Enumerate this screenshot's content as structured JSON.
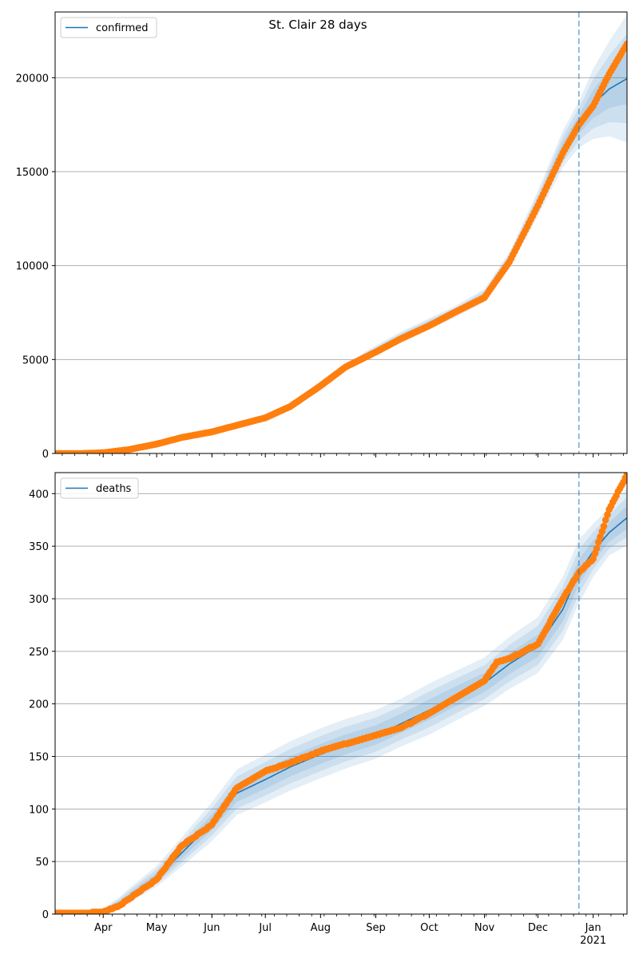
{
  "figure": {
    "title": "St. Clair 28 days"
  },
  "colors": {
    "model": "#1f77b4",
    "observed": "#ff7f0e",
    "band": "#1f77b4",
    "grid": "#b0b0b0",
    "forecast_marker": "#1f77b4"
  },
  "chart_data": [
    {
      "type": "line",
      "name": "confirmed-panel",
      "legend": "confirmed",
      "legend_position": "top-left",
      "grid": "horizontal",
      "x_range": [
        "2020-03-05",
        "2021-01-20"
      ],
      "ylim": [
        0,
        23500
      ],
      "yticks": [
        0,
        5000,
        10000,
        15000,
        20000
      ],
      "forecast_start": "2020-12-24",
      "model": {
        "x": [
          "2020-03-05",
          "2020-03-20",
          "2020-04-01",
          "2020-04-15",
          "2020-05-01",
          "2020-05-15",
          "2020-06-01",
          "2020-06-15",
          "2020-07-01",
          "2020-07-15",
          "2020-08-01",
          "2020-08-15",
          "2020-09-01",
          "2020-09-15",
          "2020-10-01",
          "2020-10-15",
          "2020-11-01",
          "2020-11-15",
          "2020-12-01",
          "2020-12-15",
          "2020-12-24",
          "2021-01-01",
          "2021-01-10",
          "2021-01-20"
        ],
        "y": [
          0,
          0,
          30,
          150,
          450,
          800,
          1200,
          1550,
          1950,
          2500,
          3700,
          4600,
          5500,
          6200,
          6900,
          7500,
          8400,
          10300,
          13300,
          16200,
          17500,
          18600,
          19400,
          19950
        ],
        "band_frac": [
          0,
          0,
          0.1,
          0.1,
          0.08,
          0.07,
          0.06,
          0.05,
          0.05,
          0.05,
          0.04,
          0.04,
          0.04,
          0.04,
          0.04,
          0.04,
          0.04,
          0.04,
          0.05,
          0.06,
          0.07,
          0.1,
          0.13,
          0.17
        ]
      },
      "observed": {
        "x": [
          "2020-03-05",
          "2020-03-20",
          "2020-04-01",
          "2020-04-15",
          "2020-05-01",
          "2020-05-15",
          "2020-06-01",
          "2020-06-15",
          "2020-07-01",
          "2020-07-15",
          "2020-08-01",
          "2020-08-15",
          "2020-09-01",
          "2020-09-15",
          "2020-10-01",
          "2020-10-15",
          "2020-11-01",
          "2020-11-15",
          "2020-12-01",
          "2020-12-15",
          "2020-12-24",
          "2021-01-01",
          "2021-01-10",
          "2021-01-20"
        ],
        "y": [
          0,
          0,
          40,
          200,
          500,
          850,
          1150,
          1500,
          1900,
          2500,
          3600,
          4600,
          5400,
          6100,
          6800,
          7500,
          8300,
          10200,
          13200,
          16000,
          17500,
          18500,
          20200,
          21800
        ]
      }
    },
    {
      "type": "line",
      "name": "deaths-panel",
      "legend": "deaths",
      "legend_position": "top-left",
      "grid": "horizontal",
      "x_range": [
        "2020-03-05",
        "2021-01-20"
      ],
      "ylim": [
        0,
        420
      ],
      "yticks": [
        0,
        50,
        100,
        150,
        200,
        250,
        300,
        350,
        400
      ],
      "forecast_start": "2020-12-24",
      "xtick_labels": [
        {
          "date": "2020-04-01",
          "label": "Apr"
        },
        {
          "date": "2020-05-01",
          "label": "May"
        },
        {
          "date": "2020-06-01",
          "label": "Jun"
        },
        {
          "date": "2020-07-01",
          "label": "Jul"
        },
        {
          "date": "2020-08-01",
          "label": "Aug"
        },
        {
          "date": "2020-09-01",
          "label": "Sep"
        },
        {
          "date": "2020-10-01",
          "label": "Oct"
        },
        {
          "date": "2020-11-01",
          "label": "Nov"
        },
        {
          "date": "2020-12-01",
          "label": "Dec"
        },
        {
          "date": "2021-01-01",
          "label": "Jan\n2021"
        }
      ],
      "model": {
        "x": [
          "2020-03-05",
          "2020-03-20",
          "2020-04-01",
          "2020-04-10",
          "2020-04-20",
          "2020-05-01",
          "2020-05-15",
          "2020-06-01",
          "2020-06-15",
          "2020-07-01",
          "2020-07-15",
          "2020-08-01",
          "2020-08-15",
          "2020-09-01",
          "2020-09-15",
          "2020-10-01",
          "2020-10-15",
          "2020-11-01",
          "2020-11-15",
          "2020-12-01",
          "2020-12-15",
          "2020-12-24",
          "2021-01-01",
          "2021-01-10",
          "2021-01-20"
        ],
        "y": [
          0,
          0,
          2,
          10,
          22,
          35,
          58,
          87,
          115,
          128,
          140,
          152,
          161,
          170,
          181,
          194,
          206,
          220,
          238,
          255,
          290,
          325,
          345,
          363,
          377
        ],
        "band_frac": [
          0,
          0,
          0.5,
          0.4,
          0.3,
          0.25,
          0.22,
          0.2,
          0.18,
          0.17,
          0.16,
          0.15,
          0.14,
          0.13,
          0.12,
          0.12,
          0.11,
          0.1,
          0.1,
          0.1,
          0.1,
          0.09,
          0.07,
          0.06,
          0.07
        ]
      },
      "observed": {
        "x": [
          "2020-03-05",
          "2020-03-20",
          "2020-04-01",
          "2020-04-10",
          "2020-04-20",
          "2020-05-01",
          "2020-05-15",
          "2020-06-01",
          "2020-06-15",
          "2020-07-01",
          "2020-07-15",
          "2020-08-01",
          "2020-08-15",
          "2020-09-01",
          "2020-09-15",
          "2020-10-01",
          "2020-10-15",
          "2020-11-01",
          "2020-11-08",
          "2020-11-15",
          "2020-12-01",
          "2020-12-15",
          "2020-12-24",
          "2021-01-01",
          "2021-01-10",
          "2021-01-20"
        ],
        "y": [
          1,
          1,
          2,
          8,
          20,
          33,
          65,
          85,
          120,
          136,
          144,
          155,
          162,
          170,
          177,
          191,
          205,
          222,
          240,
          243,
          257,
          300,
          325,
          338,
          385,
          418
        ]
      }
    }
  ]
}
